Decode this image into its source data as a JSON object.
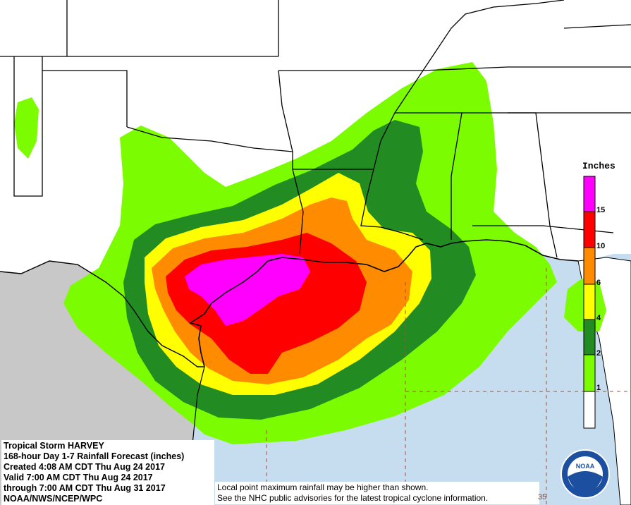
{
  "legend": {
    "title": "Inches",
    "bins": [
      {
        "label": "1",
        "color": "#ffffff"
      },
      {
        "label": "2",
        "color": "#7cfc00"
      },
      {
        "label": "4",
        "color": "#228b22"
      },
      {
        "label": "6",
        "color": "#ffff00"
      },
      {
        "label": "10",
        "color": "#ff8c00"
      },
      {
        "label": "15",
        "color": "#ff0000"
      },
      {
        "label": "",
        "color": "#ff00ff"
      }
    ]
  },
  "info": {
    "line1": "Tropical Storm HARVEY",
    "line2": "168-hour Day 1-7 Rainfall Forecast (inches)",
    "line3": "Created 4:08 AM CDT Thu Aug 24 2017",
    "line4": "Valid 7:00 AM CDT Thu Aug 24 2017",
    "line5": "through 7:00 AM CDT Thu Aug 31 2017",
    "line6": "NOAA/NWS/NCEP/WPC"
  },
  "note": {
    "line1": "Local point maximum rainfall may be higher than shown.",
    "line2": "See the NHC public advisories for the latest tropical cyclone information."
  },
  "logo": {
    "text": "NOAA"
  },
  "edge_label": "35",
  "colors": {
    "water": "#c6dcef",
    "mexico": "#c8c8c8",
    "land": "#ffffff",
    "border": "#000000"
  }
}
